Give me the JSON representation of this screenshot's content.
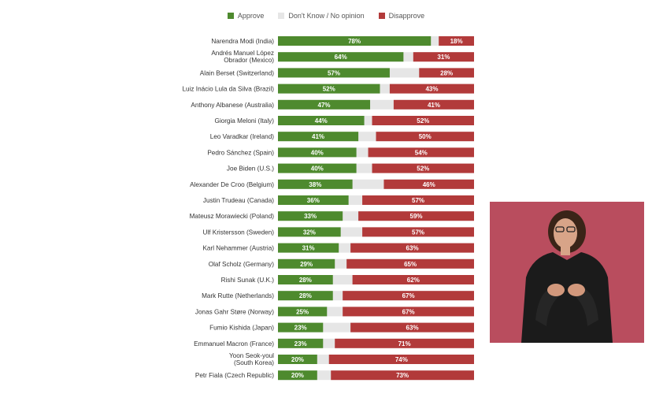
{
  "chart_data": {
    "type": "bar",
    "orientation": "horizontal",
    "stacked": true,
    "normalized_to": 100,
    "legend": {
      "placement": "top-center",
      "entries": [
        "Approve",
        "Don't Know / No opinion",
        "Disapprove"
      ]
    },
    "colors": {
      "approve": "#4e8a2e",
      "neutral": "#e6e6e6",
      "disapprove": "#b23a3a"
    },
    "categories": [
      [
        "Narendra Modi (India)"
      ],
      [
        "Andrés Manuel López",
        "Obrador (Mexico)"
      ],
      [
        "Alain Berset (Switzerland)"
      ],
      [
        "Luiz Inácio Lula da Silva (Brazil)"
      ],
      [
        "Anthony Albanese (Australia)"
      ],
      [
        "Giorgia Meloni (Italy)"
      ],
      [
        "Leo Varadkar (Ireland)"
      ],
      [
        "Pedro Sánchez (Spain)"
      ],
      [
        "Joe Biden (U.S.)"
      ],
      [
        "Alexander De Croo (Belgium)"
      ],
      [
        "Justin Trudeau (Canada)"
      ],
      [
        "Mateusz Morawiecki (Poland)"
      ],
      [
        "Ulf Kristersson (Sweden)"
      ],
      [
        "Karl Nehammer (Austria)"
      ],
      [
        "Olaf Scholz (Germany)"
      ],
      [
        "Rishi Sunak (U.K.)"
      ],
      [
        "Mark Rutte (Netherlands)"
      ],
      [
        "Jonas Gahr Støre (Norway)"
      ],
      [
        "Fumio Kishida (Japan)"
      ],
      [
        "Emmanuel Macron (France)"
      ],
      [
        "Yoon Seok-youl",
        "(South Korea)"
      ],
      [
        "Petr Fiala (Czech Republic)"
      ]
    ],
    "series": [
      {
        "name": "Approve",
        "values": [
          78,
          64,
          57,
          52,
          47,
          44,
          41,
          40,
          40,
          38,
          36,
          33,
          32,
          31,
          29,
          28,
          28,
          25,
          23,
          23,
          20,
          20
        ]
      },
      {
        "name": "Disapprove",
        "values": [
          18,
          31,
          28,
          43,
          41,
          52,
          50,
          54,
          52,
          46,
          57,
          59,
          57,
          63,
          65,
          62,
          67,
          67,
          63,
          71,
          74,
          73
        ]
      }
    ],
    "value_suffix": "%"
  },
  "video_overlay": {
    "icon": "sign-language-interpreter-icon",
    "background": "#b94d5e"
  }
}
